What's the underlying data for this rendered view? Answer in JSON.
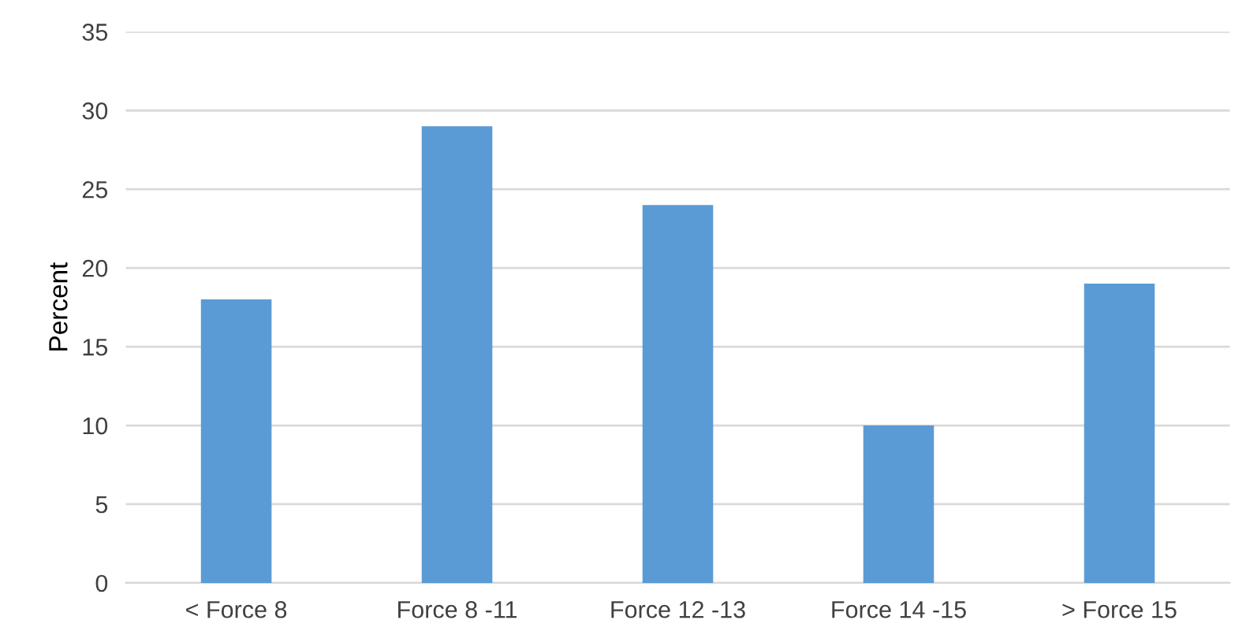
{
  "chart_data": {
    "type": "bar",
    "ylabel": "Percent",
    "categories": [
      "< Force 8",
      "Force 8 -11",
      "Force 12 -13",
      "Force 14 -15",
      "> Force 15"
    ],
    "values": [
      18,
      29,
      24,
      10,
      19
    ],
    "color": "#5b9bd5",
    "ylim": [
      0,
      35
    ],
    "yticks": [
      0,
      5,
      10,
      15,
      20,
      25,
      30,
      35
    ],
    "grid": "y"
  }
}
